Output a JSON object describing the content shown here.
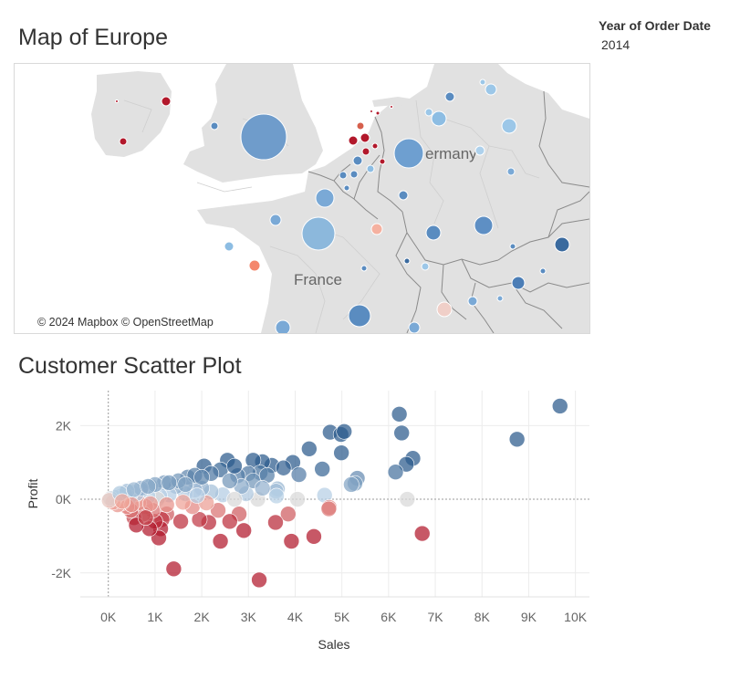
{
  "map": {
    "title": "Map of Europe",
    "attribution": "© 2024 Mapbox © OpenStreetMap",
    "labels": [
      "France",
      "ermany"
    ]
  },
  "filter": {
    "label": "Year of Order Date",
    "value": "2014"
  },
  "scatter": {
    "title": "Customer Scatter Plot"
  },
  "colors": {
    "profit_high": "#2b5a8c",
    "profit_mid": "#d8d8d8",
    "profit_low": "#b2182b",
    "land": "#e1e1e1",
    "water": "#ffffff"
  },
  "chart_data": {
    "type": "scatter",
    "xlabel": "Sales",
    "ylabel": "Profit",
    "xlim": [
      -600,
      10300
    ],
    "ylim": [
      -2650,
      2950
    ],
    "x_ticks": [
      {
        "value": 0,
        "label": "0K"
      },
      {
        "value": 1000,
        "label": "1K"
      },
      {
        "value": 2000,
        "label": "2K"
      },
      {
        "value": 3000,
        "label": "3K"
      },
      {
        "value": 4000,
        "label": "4K"
      },
      {
        "value": 5000,
        "label": "5K"
      },
      {
        "value": 6000,
        "label": "6K"
      },
      {
        "value": 7000,
        "label": "7K"
      },
      {
        "value": 8000,
        "label": "8K"
      },
      {
        "value": 9000,
        "label": "9K"
      },
      {
        "value": 10000,
        "label": "10K"
      }
    ],
    "y_ticks": [
      {
        "value": 2000,
        "label": "2K"
      },
      {
        "value": 0,
        "label": "0K"
      },
      {
        "value": -2000,
        "label": "-2K"
      }
    ],
    "grid": true,
    "color_by": "Profit",
    "points": [
      {
        "x": 9670,
        "y": 2530
      },
      {
        "x": 8750,
        "y": 1630
      },
      {
        "x": 6230,
        "y": 2310
      },
      {
        "x": 6280,
        "y": 1800
      },
      {
        "x": 6520,
        "y": 1110
      },
      {
        "x": 6380,
        "y": 950
      },
      {
        "x": 6150,
        "y": 740
      },
      {
        "x": 6400,
        "y": 0
      },
      {
        "x": 6720,
        "y": -930
      },
      {
        "x": 4750,
        "y": 1820
      },
      {
        "x": 4980,
        "y": 1760
      },
      {
        "x": 5050,
        "y": 1840
      },
      {
        "x": 4990,
        "y": 1260
      },
      {
        "x": 5330,
        "y": 570
      },
      {
        "x": 5280,
        "y": 430
      },
      {
        "x": 5200,
        "y": 400
      },
      {
        "x": 4580,
        "y": 820
      },
      {
        "x": 4630,
        "y": 110
      },
      {
        "x": 4730,
        "y": -220
      },
      {
        "x": 4720,
        "y": -260
      },
      {
        "x": 4400,
        "y": -1010
      },
      {
        "x": 4300,
        "y": 1370
      },
      {
        "x": 3950,
        "y": 1000
      },
      {
        "x": 4080,
        "y": 670
      },
      {
        "x": 4050,
        "y": 0
      },
      {
        "x": 3920,
        "y": -1140
      },
      {
        "x": 3850,
        "y": -400
      },
      {
        "x": 3620,
        "y": 280
      },
      {
        "x": 3590,
        "y": 220
      },
      {
        "x": 3600,
        "y": 90
      },
      {
        "x": 3580,
        "y": -630
      },
      {
        "x": 3500,
        "y": 920
      },
      {
        "x": 3300,
        "y": 1020
      },
      {
        "x": 3100,
        "y": 1060
      },
      {
        "x": 3250,
        "y": 720
      },
      {
        "x": 3000,
        "y": 700
      },
      {
        "x": 3200,
        "y": 0
      },
      {
        "x": 3230,
        "y": -2190
      },
      {
        "x": 2770,
        "y": 640
      },
      {
        "x": 2950,
        "y": 150
      },
      {
        "x": 2900,
        "y": -850
      },
      {
        "x": 2800,
        "y": -400
      },
      {
        "x": 2600,
        "y": -600
      },
      {
        "x": 2550,
        "y": 1060
      },
      {
        "x": 2400,
        "y": 800
      },
      {
        "x": 2400,
        "y": -1140
      },
      {
        "x": 2450,
        "y": 120
      },
      {
        "x": 2350,
        "y": -300
      },
      {
        "x": 2200,
        "y": 200
      },
      {
        "x": 2150,
        "y": -630
      },
      {
        "x": 2050,
        "y": 900
      },
      {
        "x": 2000,
        "y": 300
      },
      {
        "x": 1950,
        "y": -550
      },
      {
        "x": 1850,
        "y": 250
      },
      {
        "x": 1800,
        "y": -200
      },
      {
        "x": 1700,
        "y": 600
      },
      {
        "x": 1650,
        "y": 150
      },
      {
        "x": 1550,
        "y": -600
      },
      {
        "x": 1450,
        "y": 350
      },
      {
        "x": 1400,
        "y": -1890
      },
      {
        "x": 1300,
        "y": 120
      },
      {
        "x": 1250,
        "y": -400
      },
      {
        "x": 1200,
        "y": 450
      },
      {
        "x": 1150,
        "y": -550
      },
      {
        "x": 1120,
        "y": -800
      },
      {
        "x": 1100,
        "y": 100
      },
      {
        "x": 1080,
        "y": -1050
      },
      {
        "x": 1050,
        "y": 0
      },
      {
        "x": 1000,
        "y": -600
      },
      {
        "x": 950,
        "y": -300
      },
      {
        "x": 900,
        "y": 350
      },
      {
        "x": 880,
        "y": -800
      },
      {
        "x": 850,
        "y": 80
      },
      {
        "x": 800,
        "y": -200
      },
      {
        "x": 750,
        "y": -400
      },
      {
        "x": 700,
        "y": 250
      },
      {
        "x": 650,
        "y": -100
      },
      {
        "x": 600,
        "y": 150
      },
      {
        "x": 550,
        "y": -500
      },
      {
        "x": 500,
        "y": 200
      },
      {
        "x": 480,
        "y": -300
      },
      {
        "x": 450,
        "y": 50
      },
      {
        "x": 400,
        "y": -200
      },
      {
        "x": 350,
        "y": 150
      },
      {
        "x": 300,
        "y": -100
      },
      {
        "x": 250,
        "y": 80
      },
      {
        "x": 200,
        "y": -150
      },
      {
        "x": 150,
        "y": 50
      },
      {
        "x": 100,
        "y": -80
      },
      {
        "x": 50,
        "y": 20
      },
      {
        "x": 20,
        "y": -30
      },
      {
        "x": 1850,
        "y": 650
      },
      {
        "x": 2200,
        "y": 700
      },
      {
        "x": 1500,
        "y": 500
      },
      {
        "x": 1000,
        "y": 400
      },
      {
        "x": 2700,
        "y": 900
      },
      {
        "x": 3100,
        "y": 500
      },
      {
        "x": 2850,
        "y": 350
      },
      {
        "x": 1650,
        "y": 400
      },
      {
        "x": 700,
        "y": 300
      },
      {
        "x": 400,
        "y": 220
      },
      {
        "x": 250,
        "y": 160
      },
      {
        "x": 550,
        "y": 260
      },
      {
        "x": 850,
        "y": 350
      },
      {
        "x": 1300,
        "y": 450
      },
      {
        "x": 2000,
        "y": 600
      },
      {
        "x": 2600,
        "y": 500
      },
      {
        "x": 3400,
        "y": 650
      },
      {
        "x": 3750,
        "y": 850
      },
      {
        "x": 1250,
        "y": -150
      },
      {
        "x": 900,
        "y": -120
      },
      {
        "x": 1600,
        "y": -80
      },
      {
        "x": 2100,
        "y": -100
      },
      {
        "x": 500,
        "y": -150
      },
      {
        "x": 300,
        "y": -60
      },
      {
        "x": 1900,
        "y": 100
      },
      {
        "x": 2700,
        "y": 0
      },
      {
        "x": 3300,
        "y": 300
      },
      {
        "x": 600,
        "y": -700
      },
      {
        "x": 800,
        "y": -500
      }
    ]
  }
}
